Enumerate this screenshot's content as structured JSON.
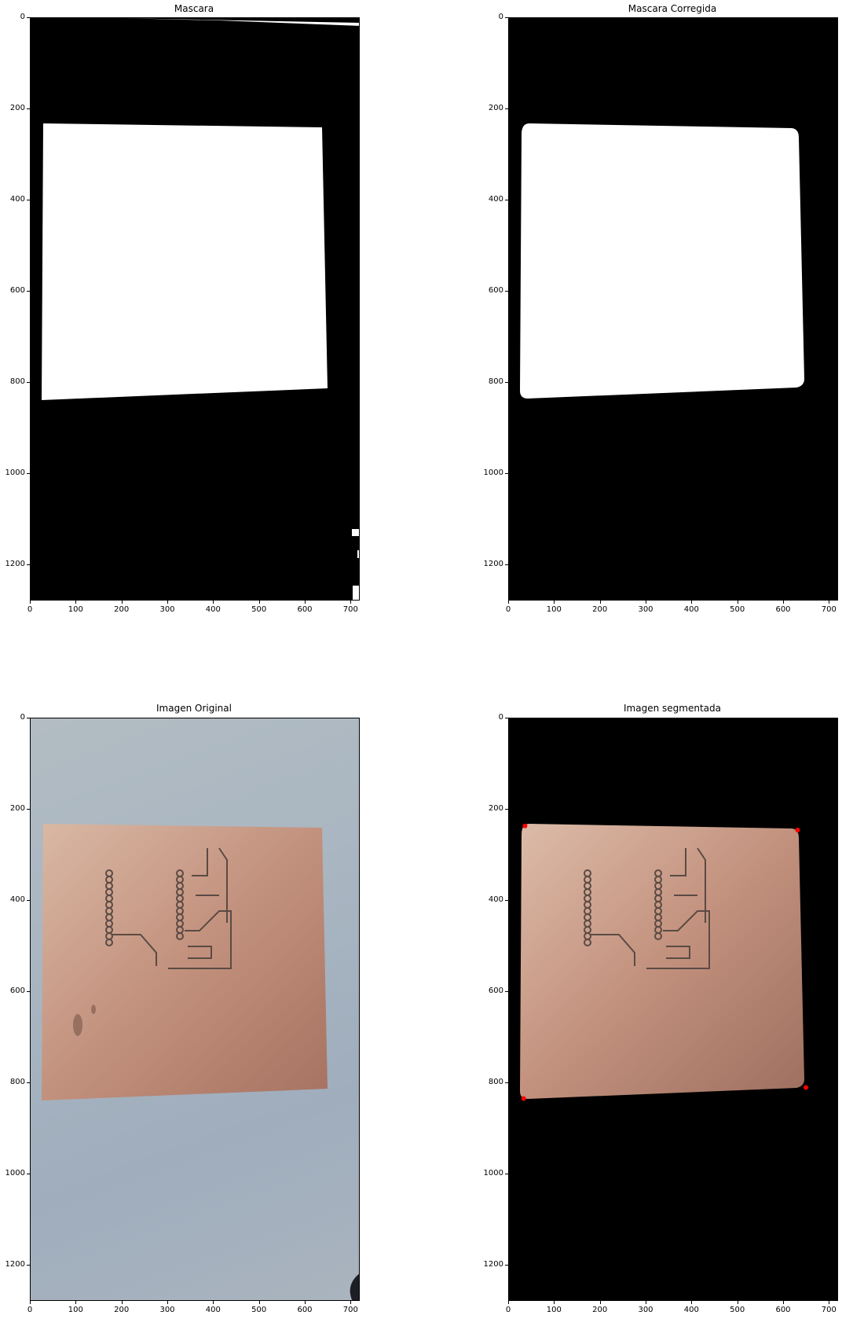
{
  "figure": {
    "panels": [
      {
        "id": "mask",
        "title": "Mascara"
      },
      {
        "id": "mask_corrected",
        "title": "Mascara Corregida"
      },
      {
        "id": "original",
        "title": "Imagen Original"
      },
      {
        "id": "segmented",
        "title": "Imagen segmentada"
      }
    ],
    "x_ticks": [
      "0",
      "100",
      "200",
      "300",
      "400",
      "500",
      "600",
      "700"
    ],
    "y_ticks": [
      "0",
      "200",
      "400",
      "600",
      "800",
      "1000",
      "1200"
    ]
  },
  "chart_data": [
    {
      "type": "image",
      "title": "Mascara",
      "xlim": [
        0,
        720
      ],
      "ylim": [
        1280,
        0
      ],
      "content": "binary mask",
      "white_region_corners": [
        [
          30,
          230
        ],
        [
          640,
          240
        ],
        [
          652,
          812
        ],
        [
          32,
          838
        ]
      ]
    },
    {
      "type": "image",
      "title": "Mascara Corregida",
      "xlim": [
        0,
        720
      ],
      "ylim": [
        1280,
        0
      ],
      "content": "binary mask (cleaned)",
      "white_region_corners": [
        [
          32,
          230
        ],
        [
          634,
          242
        ],
        [
          650,
          810
        ],
        [
          32,
          834
        ]
      ]
    },
    {
      "type": "image",
      "title": "Imagen Original",
      "xlim": [
        0,
        720
      ],
      "ylim": [
        1280,
        0
      ],
      "content": "photo of copper PCB on blue background"
    },
    {
      "type": "image",
      "title": "Imagen segmentada",
      "xlim": [
        0,
        720
      ],
      "ylim": [
        1280,
        0
      ],
      "content": "segmented PCB on black background",
      "corner_points": [
        [
          35,
          236
        ],
        [
          630,
          245
        ],
        [
          648,
          810
        ],
        [
          32,
          834
        ]
      ],
      "point_color": "#ff0000"
    }
  ],
  "colors": {
    "mask_bg": "#000000",
    "mask_fg": "#ffffff",
    "board": "#c8957f",
    "background": "#a9b4bf",
    "point": "#ff0000"
  }
}
